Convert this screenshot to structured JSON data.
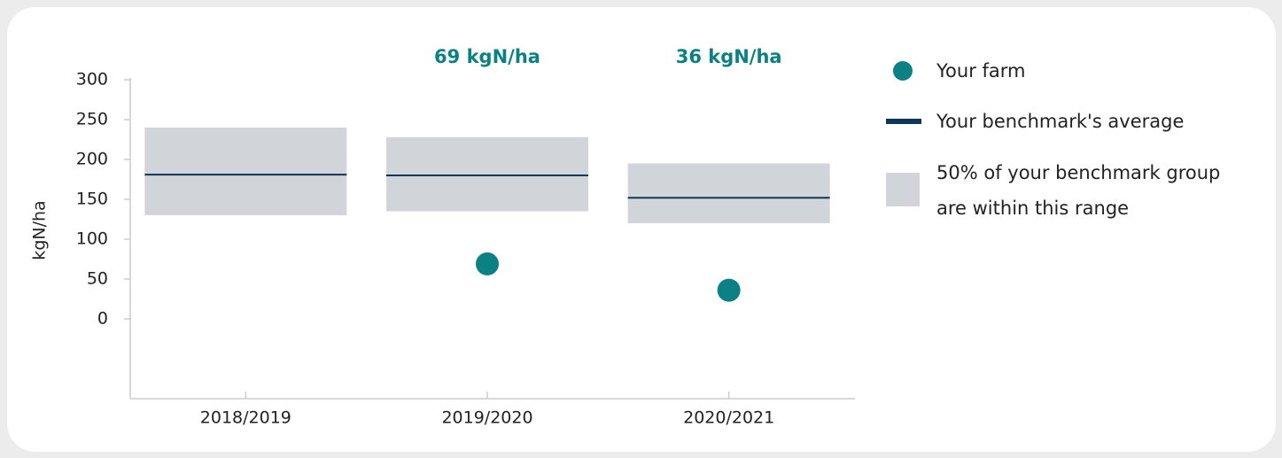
{
  "chart_data": {
    "type": "range",
    "y_label": "kgN/ha",
    "categories": [
      "2018/2019",
      "2019/2020",
      "2020/2021"
    ],
    "series": [
      {
        "name": "Your farm",
        "color": "#0b8185",
        "values": [
          null,
          69,
          36
        ],
        "value_labels": [
          null,
          "69 kgN/ha",
          "36 kgN/ha"
        ]
      },
      {
        "name": "Your benchmark's average",
        "color": "#0d3658",
        "values": [
          181,
          180,
          152
        ]
      },
      {
        "name": "50% of your benchmark group are within this range",
        "color": "#d1d4d9",
        "low": [
          130,
          135,
          120
        ],
        "high": [
          240,
          228,
          195
        ]
      }
    ],
    "ylim": [
      -100,
      300
    ],
    "yticks": [
      0,
      50,
      100,
      150,
      200,
      250,
      300
    ],
    "legend": "right"
  }
}
